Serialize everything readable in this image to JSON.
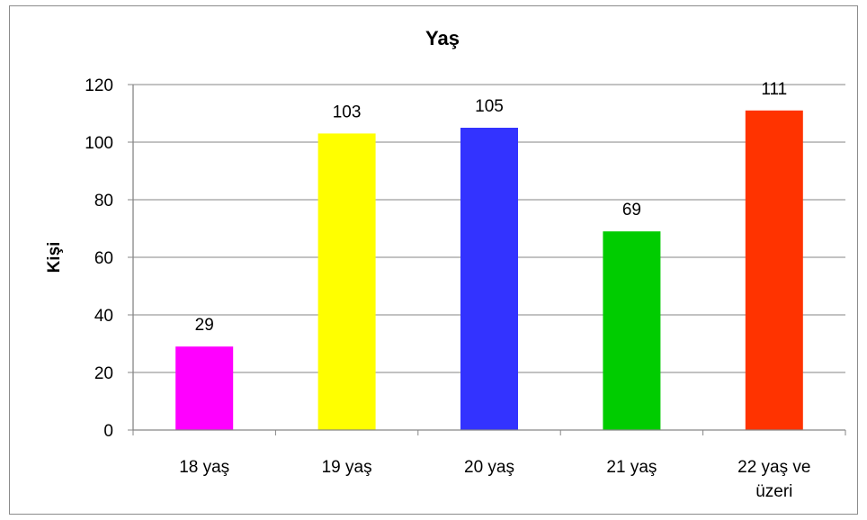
{
  "chart_data": {
    "type": "bar",
    "title": "Yaş",
    "xlabel": "",
    "ylabel": "Kişi",
    "categories": [
      [
        "18 yaş"
      ],
      [
        "19 yaş"
      ],
      [
        "20 yaş"
      ],
      [
        "21 yaş"
      ],
      [
        "22 yaş ve",
        "üzeri"
      ]
    ],
    "values": [
      29,
      103,
      105,
      69,
      111
    ],
    "bar_colors": [
      "#ff00ff",
      "#ffff00",
      "#3333ff",
      "#00cc00",
      "#ff3300"
    ],
    "ylim": [
      0,
      120
    ],
    "yticks": [
      0,
      20,
      40,
      60,
      80,
      100,
      120
    ],
    "grid": true,
    "legend": "none",
    "data_labels": true
  }
}
